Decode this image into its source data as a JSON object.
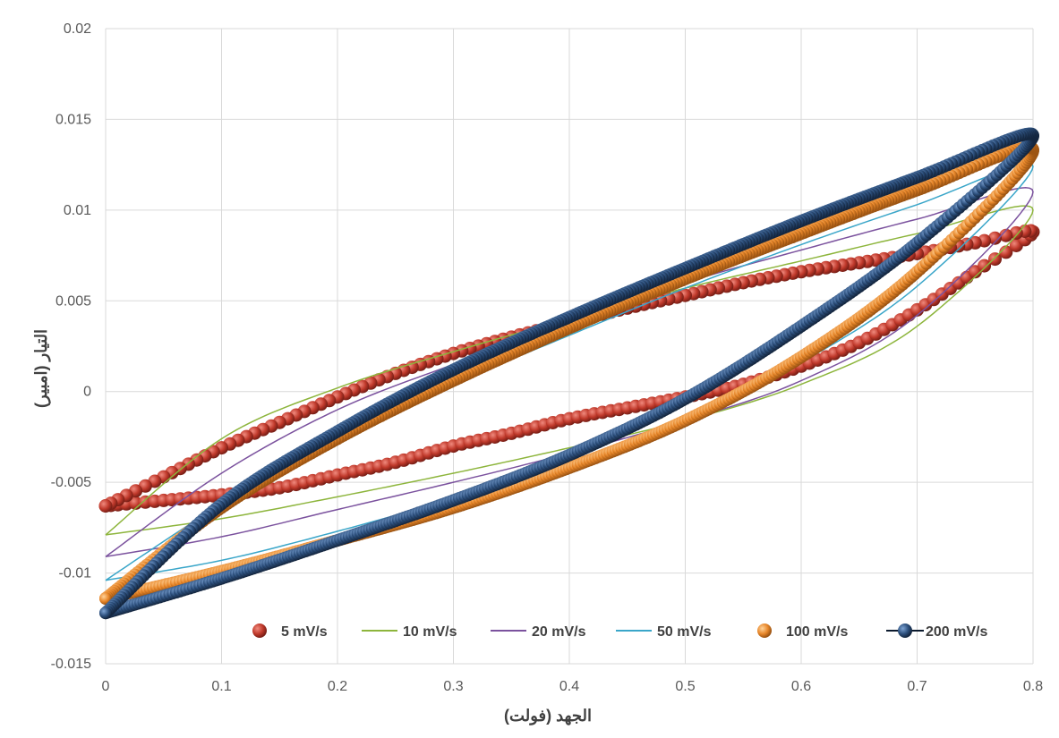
{
  "chart_data": {
    "type": "line",
    "title": "",
    "xlabel": "الجهد (فولت)",
    "ylabel": "التيار (امبير)",
    "xlim": [
      0,
      0.8
    ],
    "ylim": [
      -0.015,
      0.02
    ],
    "x_ticks": [
      "0",
      "0.1",
      "0.2",
      "0.3",
      "0.4",
      "0.5",
      "0.6",
      "0.7",
      "0.8"
    ],
    "y_ticks": [
      "0.02",
      "0.015",
      "0.01",
      "0.005",
      "0",
      "-0.005",
      "-0.01",
      "-0.015"
    ],
    "grid": true,
    "legend_position": "bottom-inside",
    "series": [
      {
        "name": "5 mV/s",
        "style": "markers",
        "color": "#c0392b",
        "forward": [
          [
            0.0,
            -0.0063
          ],
          [
            0.05,
            -0.006
          ],
          [
            0.1,
            -0.0057
          ],
          [
            0.15,
            -0.0053
          ],
          [
            0.2,
            -0.0046
          ],
          [
            0.25,
            -0.0039
          ],
          [
            0.3,
            -0.003
          ],
          [
            0.35,
            -0.0023
          ],
          [
            0.4,
            -0.0015
          ],
          [
            0.45,
            -0.0009
          ],
          [
            0.5,
            -0.0003
          ],
          [
            0.55,
            0.0004
          ],
          [
            0.6,
            0.0014
          ],
          [
            0.65,
            0.0027
          ],
          [
            0.7,
            0.0045
          ],
          [
            0.75,
            0.0066
          ],
          [
            0.8,
            0.0088
          ]
        ],
        "reverse": [
          [
            0.8,
            0.0088
          ],
          [
            0.75,
            0.0082
          ],
          [
            0.7,
            0.0076
          ],
          [
            0.65,
            0.0071
          ],
          [
            0.6,
            0.0066
          ],
          [
            0.55,
            0.006
          ],
          [
            0.5,
            0.0053
          ],
          [
            0.45,
            0.0046
          ],
          [
            0.4,
            0.0038
          ],
          [
            0.35,
            0.003
          ],
          [
            0.3,
            0.0021
          ],
          [
            0.25,
            0.001
          ],
          [
            0.2,
            -0.0003
          ],
          [
            0.15,
            -0.0017
          ],
          [
            0.1,
            -0.0031
          ],
          [
            0.05,
            -0.0047
          ],
          [
            0.0,
            -0.0063
          ]
        ]
      },
      {
        "name": "10 mV/s",
        "style": "line",
        "color": "#8db53c",
        "forward": [
          [
            0.0,
            -0.0079
          ],
          [
            0.1,
            -0.007
          ],
          [
            0.2,
            -0.0058
          ],
          [
            0.3,
            -0.0045
          ],
          [
            0.4,
            -0.0031
          ],
          [
            0.5,
            -0.0016
          ],
          [
            0.6,
            0.0004
          ],
          [
            0.7,
            0.0036
          ],
          [
            0.8,
            0.01
          ]
        ],
        "reverse": [
          [
            0.8,
            0.01
          ],
          [
            0.7,
            0.0087
          ],
          [
            0.6,
            0.0072
          ],
          [
            0.5,
            0.0057
          ],
          [
            0.4,
            0.004
          ],
          [
            0.3,
            0.0022
          ],
          [
            0.2,
            0.0002
          ],
          [
            0.1,
            -0.0026
          ],
          [
            0.0,
            -0.0079
          ]
        ]
      },
      {
        "name": "20 mV/s",
        "style": "line",
        "color": "#7b529e",
        "forward": [
          [
            0.0,
            -0.0091
          ],
          [
            0.1,
            -0.008
          ],
          [
            0.2,
            -0.0065
          ],
          [
            0.3,
            -0.005
          ],
          [
            0.4,
            -0.0034
          ],
          [
            0.5,
            -0.0016
          ],
          [
            0.6,
            0.0006
          ],
          [
            0.7,
            0.0042
          ],
          [
            0.8,
            0.011
          ]
        ],
        "reverse": [
          [
            0.8,
            0.011
          ],
          [
            0.7,
            0.0095
          ],
          [
            0.6,
            0.0078
          ],
          [
            0.5,
            0.006
          ],
          [
            0.4,
            0.0038
          ],
          [
            0.3,
            0.0015
          ],
          [
            0.2,
            -0.001
          ],
          [
            0.1,
            -0.0045
          ],
          [
            0.0,
            -0.0091
          ]
        ]
      },
      {
        "name": "50 mV/s",
        "style": "line",
        "color": "#3aa6c9",
        "forward": [
          [
            0.0,
            -0.0104
          ],
          [
            0.1,
            -0.0093
          ],
          [
            0.2,
            -0.0077
          ],
          [
            0.3,
            -0.0059
          ],
          [
            0.4,
            -0.004
          ],
          [
            0.5,
            -0.0016
          ],
          [
            0.6,
            0.0016
          ],
          [
            0.7,
            0.0058
          ],
          [
            0.8,
            0.0124
          ]
        ],
        "reverse": [
          [
            0.8,
            0.0124
          ],
          [
            0.7,
            0.0103
          ],
          [
            0.6,
            0.0081
          ],
          [
            0.5,
            0.0057
          ],
          [
            0.4,
            0.0031
          ],
          [
            0.3,
            0.0004
          ],
          [
            0.2,
            -0.0026
          ],
          [
            0.1,
            -0.0062
          ],
          [
            0.0,
            -0.0104
          ]
        ]
      },
      {
        "name": "100 mV/s",
        "style": "markers",
        "color": "#e8872a",
        "forward": [
          [
            0.0,
            -0.0114
          ],
          [
            0.1,
            -0.0099
          ],
          [
            0.2,
            -0.0082
          ],
          [
            0.3,
            -0.0064
          ],
          [
            0.4,
            -0.0042
          ],
          [
            0.5,
            -0.0016
          ],
          [
            0.6,
            0.0019
          ],
          [
            0.7,
            0.0066
          ],
          [
            0.8,
            0.0133
          ]
        ],
        "reverse": [
          [
            0.8,
            0.0133
          ],
          [
            0.7,
            0.0111
          ],
          [
            0.6,
            0.0087
          ],
          [
            0.5,
            0.0062
          ],
          [
            0.4,
            0.0035
          ],
          [
            0.3,
            0.0006
          ],
          [
            0.2,
            -0.0026
          ],
          [
            0.1,
            -0.0064
          ],
          [
            0.0,
            -0.0114
          ]
        ]
      },
      {
        "name": "200 mV/s",
        "style": "line-markers",
        "color": "#2c4f7c",
        "forward": [
          [
            0.0,
            -0.0122
          ],
          [
            0.1,
            -0.0103
          ],
          [
            0.2,
            -0.0082
          ],
          [
            0.3,
            -0.006
          ],
          [
            0.4,
            -0.0035
          ],
          [
            0.5,
            -0.0004
          ],
          [
            0.6,
            0.0036
          ],
          [
            0.7,
            0.0082
          ],
          [
            0.8,
            0.0141
          ]
        ],
        "reverse": [
          [
            0.8,
            0.0141
          ],
          [
            0.7,
            0.0118
          ],
          [
            0.6,
            0.0094
          ],
          [
            0.5,
            0.0068
          ],
          [
            0.4,
            0.0041
          ],
          [
            0.3,
            0.0012
          ],
          [
            0.2,
            -0.0022
          ],
          [
            0.1,
            -0.0062
          ],
          [
            0.0,
            -0.0122
          ]
        ]
      }
    ]
  }
}
